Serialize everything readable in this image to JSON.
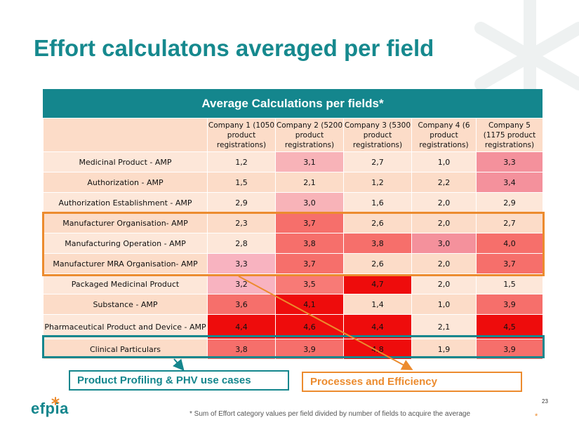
{
  "slide": {
    "title": "Effort calculatons averaged per field",
    "footnote": "* Sum of Effort category values per field divided by number of fields to acquire the average",
    "page_number": "23",
    "logo_text": "efpia",
    "corner_mark": "*"
  },
  "colors": {
    "teal": "#14868d",
    "orange": "#ec8b2e"
  },
  "table": {
    "header": "Average Calculations per fields*",
    "columns": [
      "Company 1 (1050 product registrations)",
      "Company 2 (5200 product registrations)",
      "Company 3 (5300 product registrations)",
      "Company 4 (6 product registrations)",
      "Company 5 (1175 product registrations)"
    ],
    "rows": [
      {
        "label": "Medicinal Product - AMP",
        "values": [
          "1,2",
          "3,1",
          "2,7",
          "1,0",
          "3,3"
        ]
      },
      {
        "label": "Authorization - AMP",
        "values": [
          "1,5",
          "2,1",
          "1,2",
          "2,2",
          "3,4"
        ]
      },
      {
        "label": "Authorization Establishment - AMP",
        "values": [
          "2,9",
          "3,0",
          "1,6",
          "2,0",
          "2,9"
        ]
      },
      {
        "label": "Manufacturer  Organisation- AMP",
        "values": [
          "2,3",
          "3,7",
          "2,6",
          "2,0",
          "2,7"
        ]
      },
      {
        "label": "Manufacturing Operation - AMP",
        "values": [
          "2,8",
          "3,8",
          "3,8",
          "3,0",
          "4,0"
        ]
      },
      {
        "label": "Manufacturer MRA Organisation- AMP",
        "values": [
          "3,3",
          "3,7",
          "2,6",
          "2,0",
          "3,7"
        ]
      },
      {
        "label": "Packaged Medicinal Product",
        "values": [
          "3,2",
          "3,5",
          "4,7",
          "2,0",
          "1,5"
        ]
      },
      {
        "label": "Substance - AMP",
        "values": [
          "3,6",
          "4,1",
          "1,4",
          "1,0",
          "3,9"
        ]
      },
      {
        "label": "Pharmaceutical Product and Device - AMP",
        "values": [
          "4,4",
          "4,6",
          "4,4",
          "2,1",
          "4,5"
        ]
      },
      {
        "label": "Clinical Particulars",
        "values": [
          "3,8",
          "3,9",
          "4,8",
          "1,9",
          "3,9"
        ]
      }
    ]
  },
  "callouts": {
    "teal_label": "Product Profiling & PHV use cases",
    "orange_label": "Processes and Efficiency"
  }
}
